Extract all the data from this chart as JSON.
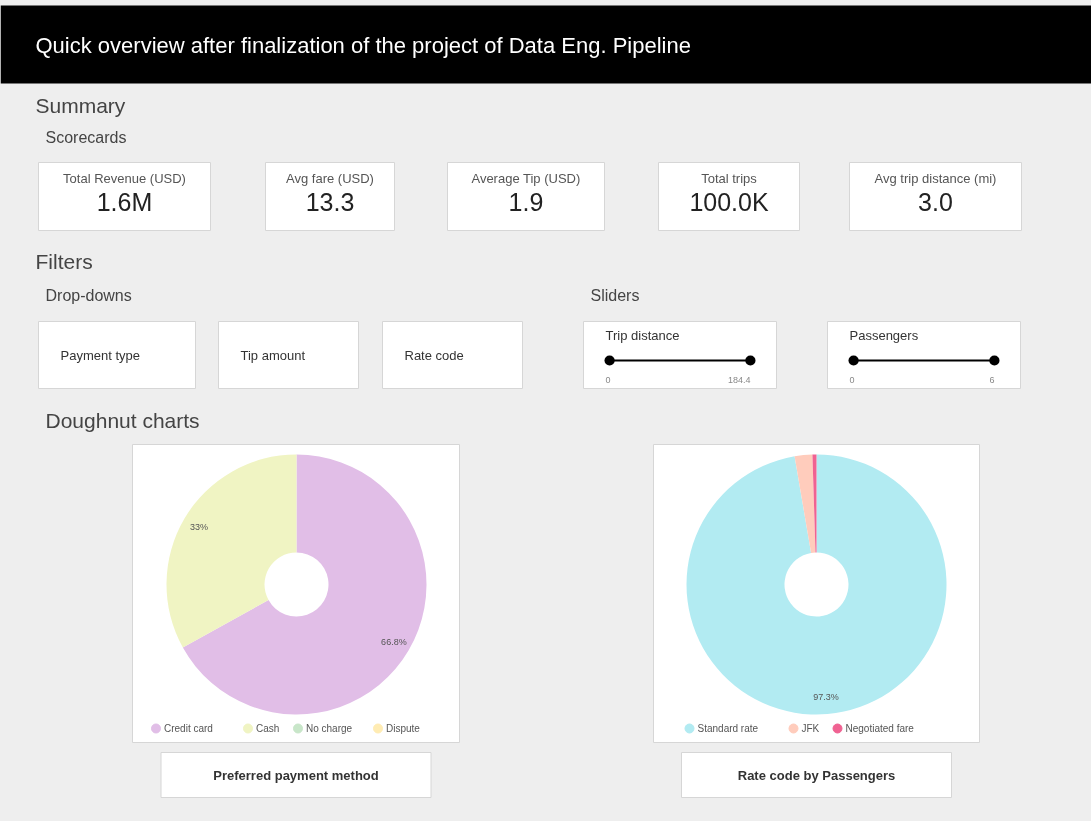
{
  "chart_data": [
    {
      "type": "other",
      "title": "Quick overview after finalization of the project of Data Eng. Pipeline",
      "subtitle": "Summary",
      "annotations": [
        "Scorecards",
        "Total Revenue (USD)",
        "1.6M",
        "Avg fare (USD)",
        "13.3",
        "Average Tip (USD)",
        "1.9",
        "Total trips",
        "100.0K",
        "Avg trip distance (mi)",
        "3.0"
      ]
    },
    {
      "type": "other",
      "title": "Filters",
      "annotations": [
        "Drop-downs",
        "Payment type",
        "Tip amount",
        "Rate code",
        "Sliders",
        "Trip distance",
        "0",
        "184.4",
        "Passengers",
        "0",
        "6"
      ]
    },
    {
      "type": "donut",
      "title": "Preferred payment method",
      "annotations": [
        "Doughnut charts"
      ],
      "categories": [
        "Credit card",
        "Cash",
        "No charge",
        "Dispute"
      ],
      "values": [
        66.8,
        33,
        null,
        null
      ],
      "colors": [
        "#e1bee7",
        "#f0f4c3",
        "#c8e6c9",
        "#ffecb3"
      ],
      "value_labels": [
        "66.8%",
        "33%",
        null,
        null
      ],
      "legend": "bottom"
    },
    {
      "type": "donut",
      "title": "Rate code by Passengers",
      "categories": [
        "Standard rate",
        "JFK",
        "Negotiated fare"
      ],
      "values": [
        97.3,
        2.2,
        0.5
      ],
      "colors": [
        "#b2ebf2",
        "#ffccbc",
        "#f06292"
      ],
      "value_labels": [
        "97.3%",
        null,
        null
      ],
      "legend": "bottom"
    }
  ]
}
